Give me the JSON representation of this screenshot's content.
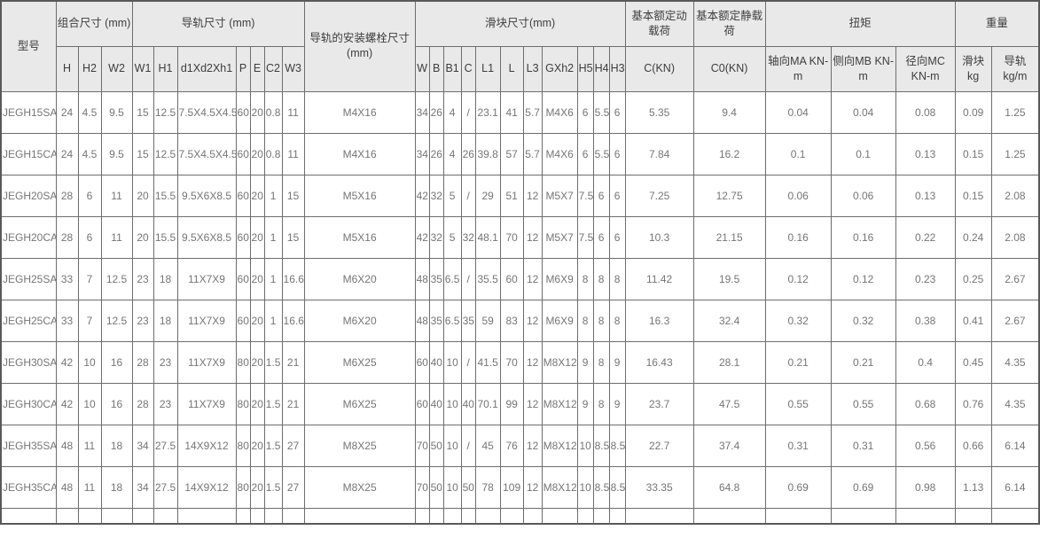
{
  "colors": {
    "header_bg": "#e9e9e9",
    "border": "#6d6d6d",
    "outer_border": "#595959",
    "header_text": "#3d3d3d",
    "cell_text": "#757575"
  },
  "table": {
    "header": {
      "model_label": "型号",
      "groups": [
        {
          "label": "组合尺寸 (mm)",
          "colspan": 3
        },
        {
          "label": "导轨尺寸 (mm)",
          "colspan": 7
        },
        {
          "label": "导轨的安装螺栓尺寸 (mm)",
          "colspan": 1,
          "rowspan": 2
        },
        {
          "label": "滑块尺寸(mm)",
          "colspan": 11
        },
        {
          "label": "基本额定动载荷",
          "colspan": 1
        },
        {
          "label": "基本额定静载荷",
          "colspan": 1
        },
        {
          "label": "扭矩",
          "colspan": 3
        },
        {
          "label": "重量",
          "colspan": 2
        }
      ],
      "sub_headers": [
        "H",
        "H2",
        "W2",
        "W1",
        "H1",
        "d1Xd2Xh1",
        "P",
        "E",
        "C2",
        "W3",
        "W",
        "B",
        "B1",
        "C",
        "L1",
        "L",
        "L3",
        "GXh2",
        "H5",
        "H4",
        "H3",
        "C(KN)",
        "C0(KN)",
        "轴向MA KN-m",
        "侧向MB KN-m",
        "径向MC KN-m",
        "滑块 kg",
        "导轨 kg/m"
      ]
    },
    "rows": [
      [
        "JEGH15SA",
        "24",
        "4.5",
        "9.5",
        "15",
        "12.5",
        "7.5X4.5X4.5",
        "60",
        "20",
        "0.8",
        "11",
        "M4X16",
        "34",
        "26",
        "4",
        "/",
        "23.1",
        "41",
        "5.7",
        "M4X6",
        "6",
        "5.5",
        "6",
        "5.35",
        "9.4",
        "0.04",
        "0.04",
        "0.08",
        "0.09",
        "1.25"
      ],
      [
        "JEGH15CA",
        "24",
        "4.5",
        "9.5",
        "15",
        "12.5",
        "7.5X4.5X4.5",
        "60",
        "20",
        "0.8",
        "11",
        "M4X16",
        "34",
        "26",
        "4",
        "26",
        "39.8",
        "57",
        "5.7",
        "M4X6",
        "6",
        "5.5",
        "6",
        "7.84",
        "16.2",
        "0.1",
        "0.1",
        "0.13",
        "0.15",
        "1.25"
      ],
      [
        "JEGH20SA",
        "28",
        "6",
        "11",
        "20",
        "15.5",
        "9.5X6X8.5",
        "60",
        "20",
        "1",
        "15",
        "M5X16",
        "42",
        "32",
        "5",
        "/",
        "29",
        "51",
        "12",
        "M5X7",
        "7.5",
        "6",
        "6",
        "7.25",
        "12.75",
        "0.06",
        "0.06",
        "0.13",
        "0.15",
        "2.08"
      ],
      [
        "JEGH20CA",
        "28",
        "6",
        "11",
        "20",
        "15.5",
        "9.5X6X8.5",
        "60",
        "20",
        "1",
        "15",
        "M5X16",
        "42",
        "32",
        "5",
        "32",
        "48.1",
        "70",
        "12",
        "M5X7",
        "7.5",
        "6",
        "6",
        "10.3",
        "21.15",
        "0.16",
        "0.16",
        "0.22",
        "0.24",
        "2.08"
      ],
      [
        "JEGH25SA",
        "33",
        "7",
        "12.5",
        "23",
        "18",
        "11X7X9",
        "60",
        "20",
        "1",
        "16.6",
        "M6X20",
        "48",
        "35",
        "6.5",
        "/",
        "35.5",
        "60",
        "12",
        "M6X9",
        "8",
        "8",
        "8",
        "11.42",
        "19.5",
        "0.12",
        "0.12",
        "0.23",
        "0.25",
        "2.67"
      ],
      [
        "JEGH25CA",
        "33",
        "7",
        "12.5",
        "23",
        "18",
        "11X7X9",
        "60",
        "20",
        "1",
        "16.6",
        "M6X20",
        "48",
        "35",
        "6.5",
        "35",
        "59",
        "83",
        "12",
        "M6X9",
        "8",
        "8",
        "8",
        "16.3",
        "32.4",
        "0.32",
        "0.32",
        "0.38",
        "0.41",
        "2.67"
      ],
      [
        "JEGH30SA",
        "42",
        "10",
        "16",
        "28",
        "23",
        "11X7X9",
        "80",
        "20",
        "1.5",
        "21",
        "M6X25",
        "60",
        "40",
        "10",
        "/",
        "41.5",
        "70",
        "12",
        "M8X12",
        "9",
        "8",
        "9",
        "16.43",
        "28.1",
        "0.21",
        "0.21",
        "0.4",
        "0.45",
        "4.35"
      ],
      [
        "JEGH30CA",
        "42",
        "10",
        "16",
        "28",
        "23",
        "11X7X9",
        "80",
        "20",
        "1.5",
        "21",
        "M6X25",
        "60",
        "40",
        "10",
        "40",
        "70.1",
        "99",
        "12",
        "M8X12",
        "9",
        "8",
        "9",
        "23.7",
        "47.5",
        "0.55",
        "0.55",
        "0.68",
        "0.76",
        "4.35"
      ],
      [
        "JEGH35SA",
        "48",
        "11",
        "18",
        "34",
        "27.5",
        "14X9X12",
        "80",
        "20",
        "1.5",
        "27",
        "M8X25",
        "70",
        "50",
        "10",
        "/",
        "45",
        "76",
        "12",
        "M8X12",
        "10",
        "8.5",
        "8.5",
        "22.7",
        "37.4",
        "0.31",
        "0.31",
        "0.56",
        "0.66",
        "6.14"
      ],
      [
        "JEGH35CA",
        "48",
        "11",
        "18",
        "34",
        "27.5",
        "14X9X12",
        "80",
        "20",
        "1.5",
        "27",
        "M8X25",
        "70",
        "50",
        "10",
        "50",
        "78",
        "109",
        "12",
        "M8X12",
        "10",
        "8.5",
        "8.5",
        "33.35",
        "64.8",
        "0.69",
        "0.69",
        "0.98",
        "1.13",
        "6.14"
      ]
    ]
  }
}
